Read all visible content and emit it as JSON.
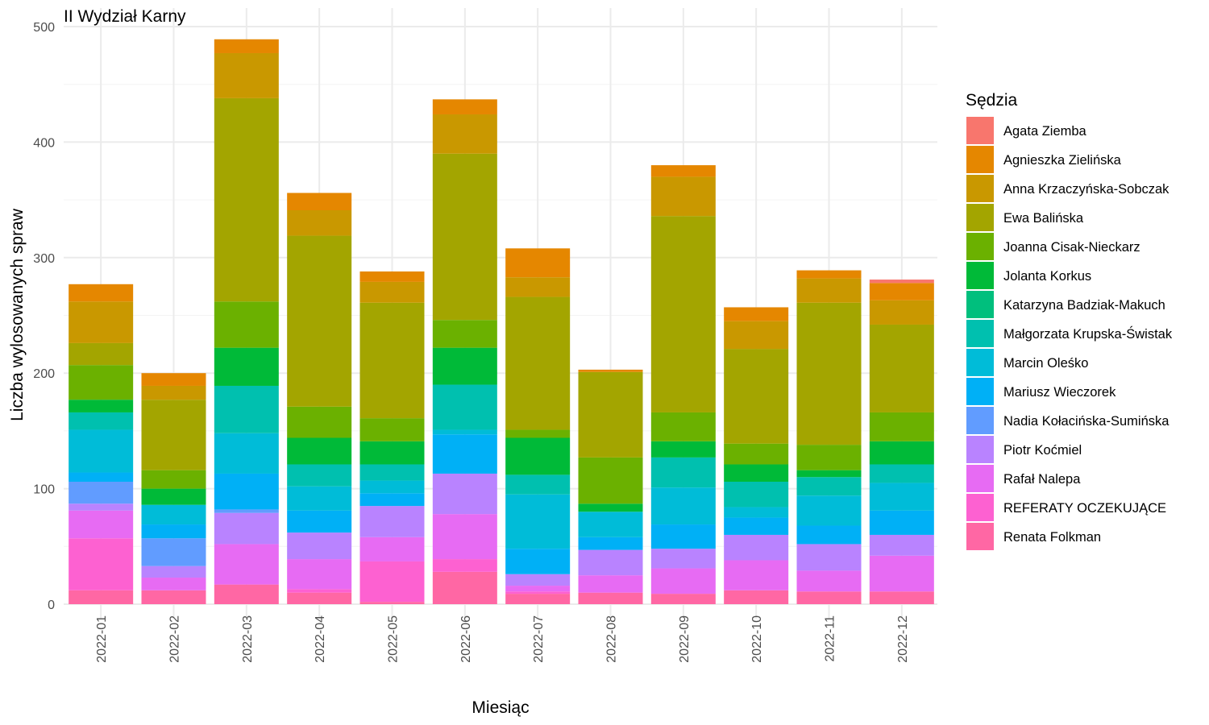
{
  "chart_data": {
    "type": "bar",
    "stacked": true,
    "title": "II Wydział Karny",
    "xlabel": "Miesiąc",
    "ylabel": "Liczba wylosowanych spraw",
    "ylim": [
      0,
      500
    ],
    "yticks": [
      0,
      100,
      200,
      300,
      400,
      500
    ],
    "grid": true,
    "legend_title": "Sędzia",
    "legend_position": "right",
    "categories": [
      "2022-01",
      "2022-02",
      "2022-03",
      "2022-04",
      "2022-05",
      "2022-06",
      "2022-07",
      "2022-08",
      "2022-09",
      "2022-10",
      "2022-11",
      "2022-12"
    ],
    "series": [
      {
        "name": "Agata Ziemba",
        "color": "#F8766D",
        "values": [
          0,
          0,
          0,
          0,
          0,
          0,
          0,
          0,
          0,
          0,
          0,
          3
        ]
      },
      {
        "name": "Agnieszka Zielińska",
        "color": "#E58700",
        "values": [
          15,
          11,
          12,
          15,
          9,
          13,
          25,
          2,
          10,
          12,
          7,
          15
        ]
      },
      {
        "name": "Anna Krzaczyńska-Sobczak",
        "color": "#C99800",
        "values": [
          36,
          12,
          39,
          22,
          18,
          34,
          17,
          0,
          34,
          24,
          21,
          21
        ]
      },
      {
        "name": "Ewa Balińska",
        "color": "#A3A500",
        "values": [
          19,
          61,
          176,
          148,
          100,
          144,
          115,
          74,
          170,
          82,
          123,
          76
        ]
      },
      {
        "name": "Joanna Cisak-Nieckarz",
        "color": "#6BB100",
        "values": [
          30,
          16,
          40,
          27,
          20,
          24,
          7,
          40,
          25,
          18,
          22,
          25
        ]
      },
      {
        "name": "Jolanta Korkus",
        "color": "#00BA38",
        "values": [
          11,
          14,
          33,
          23,
          20,
          32,
          32,
          7,
          14,
          15,
          6,
          20
        ]
      },
      {
        "name": "Katarzyna Badziak-Makuch",
        "color": "#00BF7D",
        "values": [
          0,
          0,
          0,
          0,
          0,
          0,
          0,
          0,
          0,
          0,
          0,
          0
        ]
      },
      {
        "name": "Małgorzata Krupska-Świstak",
        "color": "#00C0AF",
        "values": [
          15,
          0,
          41,
          19,
          14,
          39,
          17,
          0,
          26,
          22,
          16,
          16
        ]
      },
      {
        "name": "Marcin Oleśko",
        "color": "#00BCD8",
        "values": [
          37,
          17,
          35,
          21,
          11,
          4,
          47,
          22,
          32,
          9,
          26,
          24
        ]
      },
      {
        "name": "Mariusz Wieczorek",
        "color": "#00B0F6",
        "values": [
          8,
          12,
          31,
          19,
          11,
          34,
          22,
          11,
          21,
          15,
          16,
          21
        ]
      },
      {
        "name": "Nadia Kołacińska-Sumińska",
        "color": "#619CFF",
        "values": [
          19,
          24,
          3,
          0,
          0,
          0,
          0,
          0,
          0,
          0,
          0,
          0
        ]
      },
      {
        "name": "Piotr Koćmiel",
        "color": "#B983FF",
        "values": [
          6,
          10,
          27,
          23,
          27,
          35,
          10,
          22,
          17,
          22,
          23,
          18
        ]
      },
      {
        "name": "Rafał Nalepa",
        "color": "#E76BF3",
        "values": [
          24,
          11,
          35,
          26,
          21,
          39,
          5,
          15,
          22,
          26,
          18,
          31
        ]
      },
      {
        "name": "REFERATY OCZEKUJĄCE",
        "color": "#FD61D1",
        "values": [
          45,
          0,
          0,
          3,
          35,
          11,
          2,
          0,
          0,
          0,
          0,
          0
        ]
      },
      {
        "name": "Renata Folkman",
        "color": "#FF67A4",
        "values": [
          12,
          12,
          17,
          10,
          2,
          28,
          9,
          10,
          9,
          12,
          11,
          11
        ]
      }
    ]
  }
}
